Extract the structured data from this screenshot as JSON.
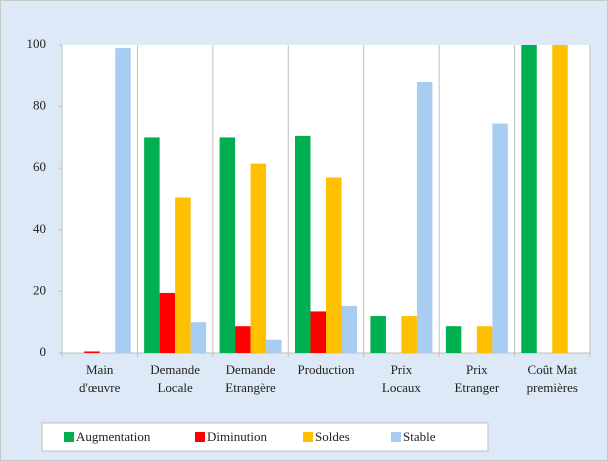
{
  "chart_data": {
    "type": "bar",
    "categories": [
      [
        "Main",
        "d'œuvre"
      ],
      [
        "Demande",
        "Locale"
      ],
      [
        "Demande",
        "Etrangère"
      ],
      [
        "Production"
      ],
      [
        "Prix",
        "Locaux"
      ],
      [
        "Prix",
        "Etranger"
      ],
      [
        "Coût Mat",
        "premières"
      ]
    ],
    "series": [
      {
        "name": "Augmentation",
        "color": "#00b050",
        "values": [
          0,
          70,
          70,
          70.5,
          12,
          8.7,
          100
        ]
      },
      {
        "name": "Diminution",
        "color": "#ff0000",
        "values": [
          0.5,
          19.5,
          8.7,
          13.5,
          0,
          0,
          0
        ]
      },
      {
        "name": "Soldes",
        "color": "#ffc000",
        "values": [
          0,
          50.5,
          61.5,
          57,
          12,
          8.7,
          100
        ]
      },
      {
        "name": "Stable",
        "color": "#a9cdf0",
        "values": [
          99,
          10,
          4.3,
          15.3,
          88,
          74.5,
          0
        ]
      }
    ],
    "ylim": [
      0,
      100
    ],
    "yticks": [
      0,
      20,
      40,
      60,
      80,
      100
    ],
    "legend": "bottom"
  }
}
